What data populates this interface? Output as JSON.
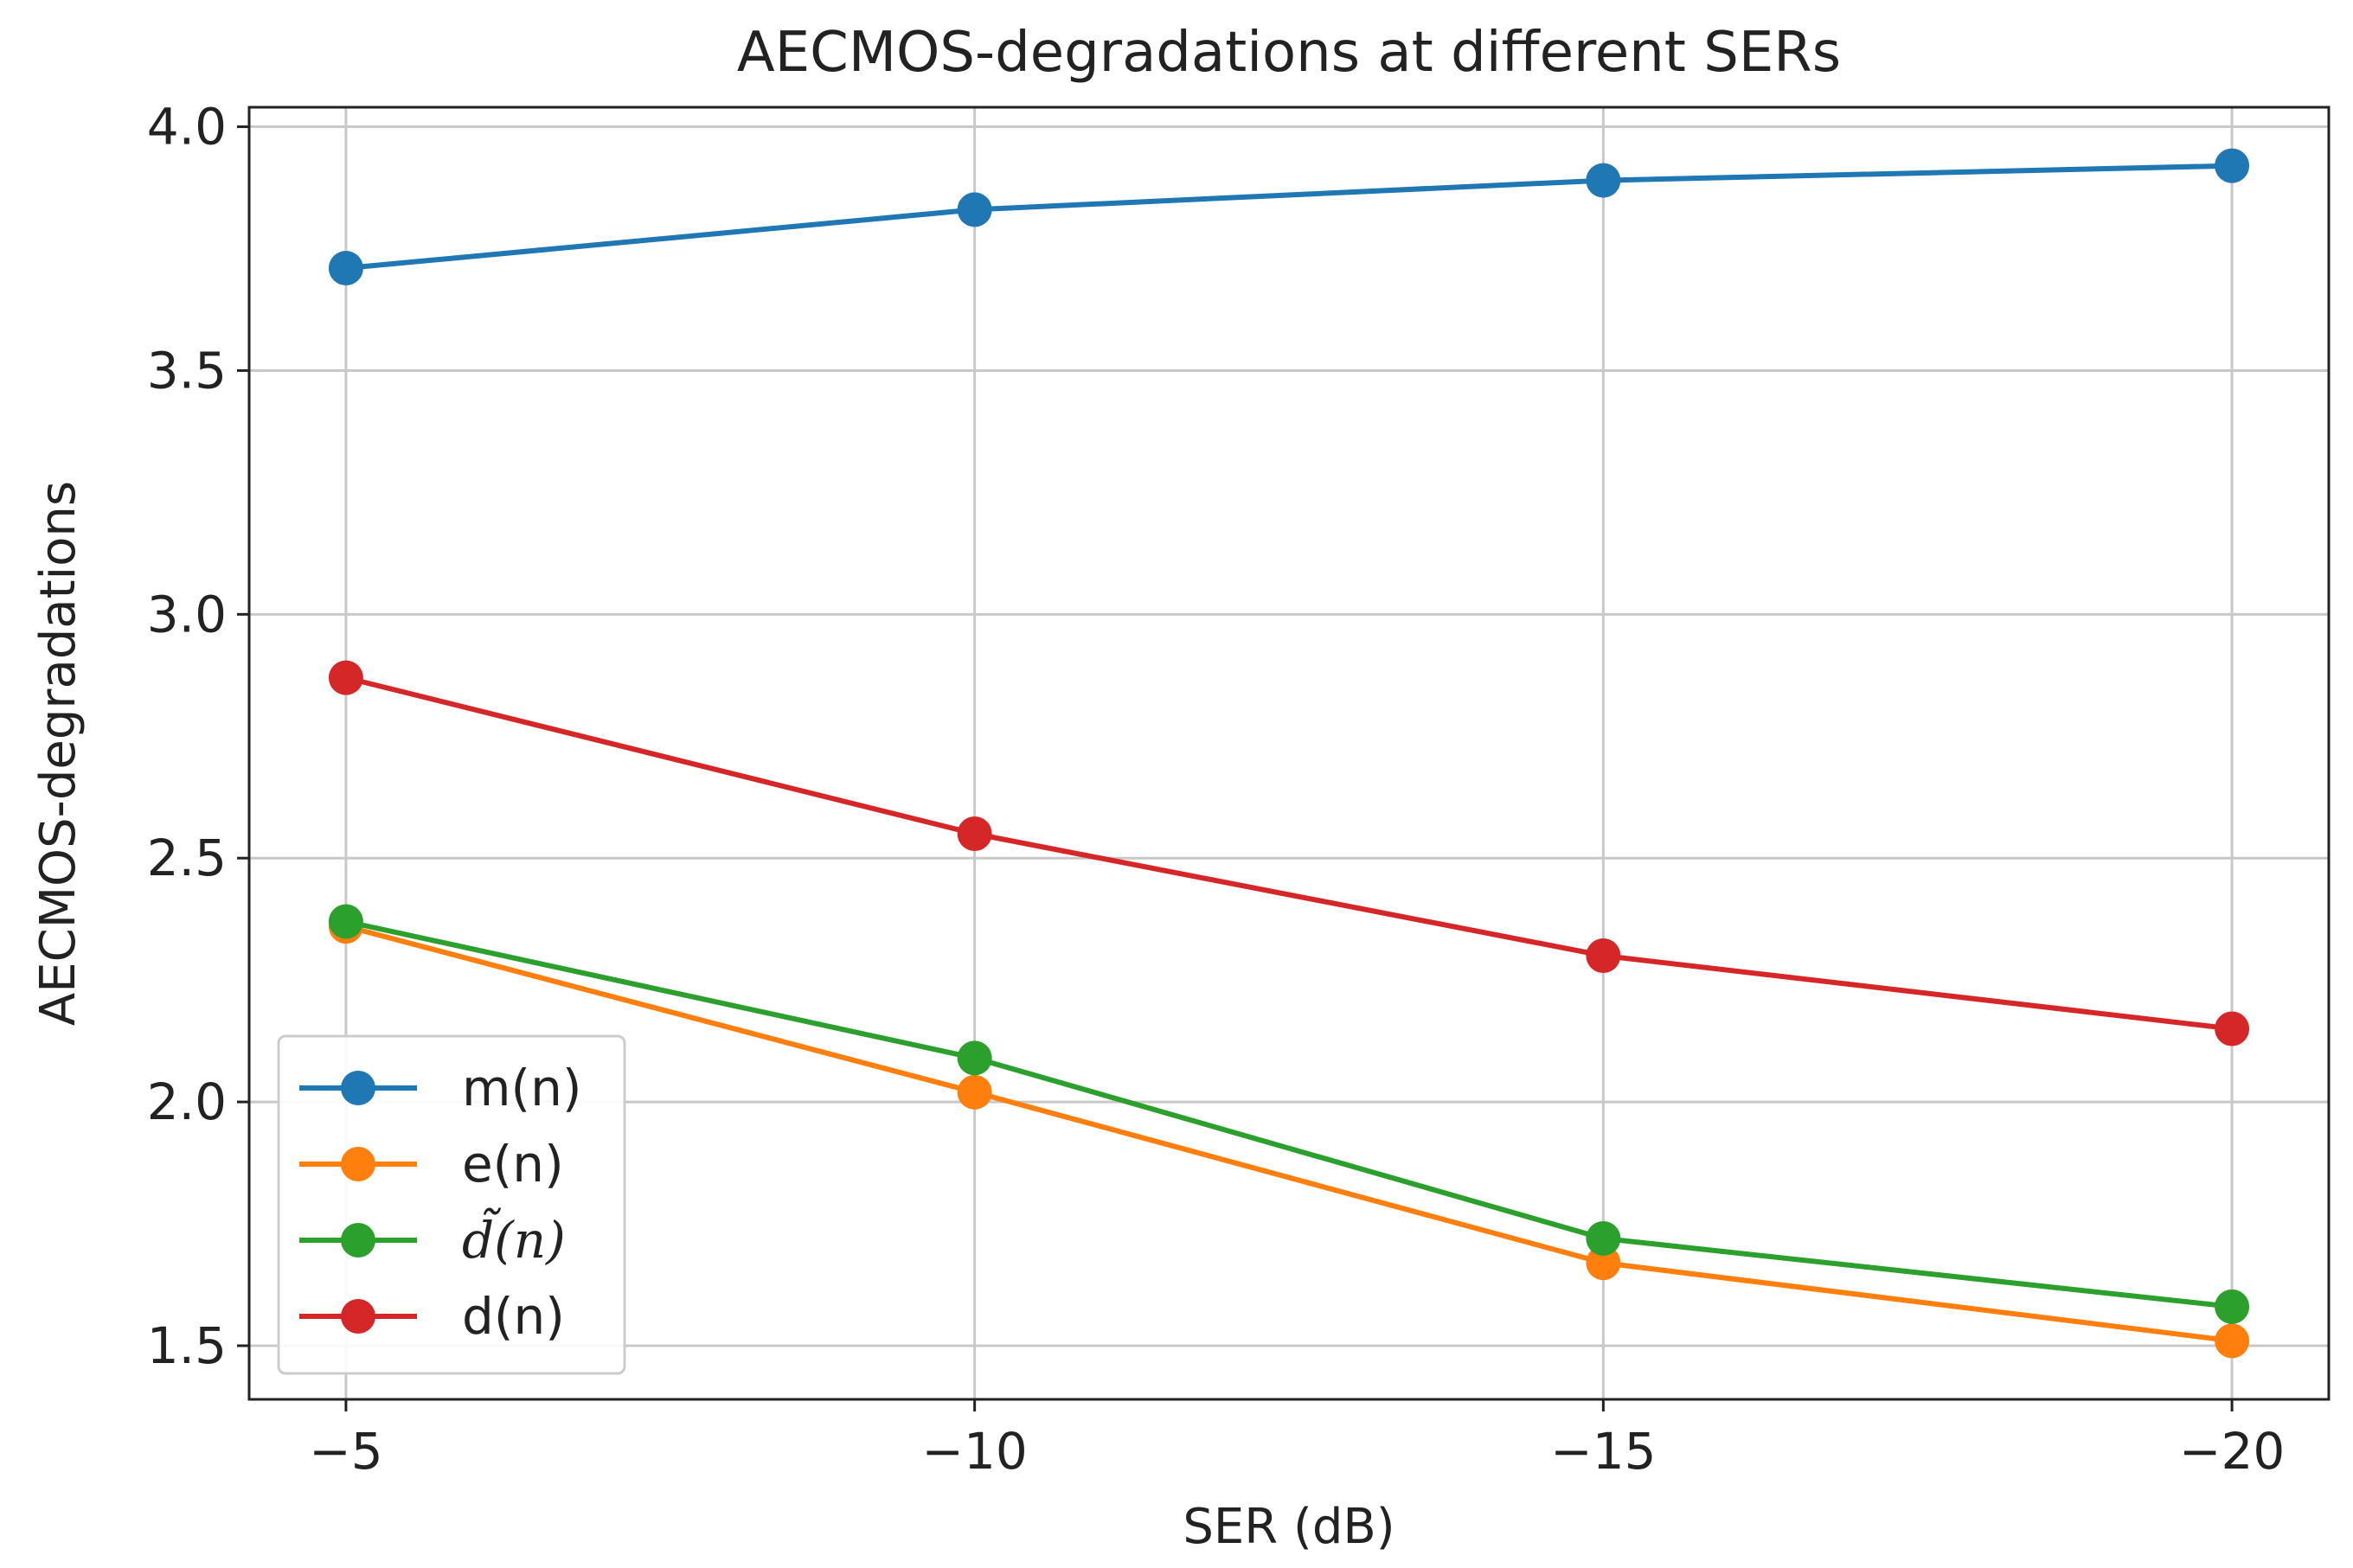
{
  "chart_data": {
    "type": "line",
    "title": "AECMOS-degradations at different SERs",
    "xlabel": "SER (dB)",
    "ylabel": "AECMOS-degradations",
    "x": [
      -5,
      -10,
      -15,
      -20
    ],
    "x_tick_labels": [
      "−5",
      "−10",
      "−15",
      "−20"
    ],
    "xlim": [
      -4.23,
      -20.77
    ],
    "ylim": [
      1.39,
      4.04
    ],
    "y_ticks": [
      1.5,
      2.0,
      2.5,
      3.0,
      3.5,
      4.0
    ],
    "y_tick_labels": [
      "1.5",
      "2.0",
      "2.5",
      "3.0",
      "3.5",
      "4.0"
    ],
    "grid": true,
    "legend_position": "lower-left",
    "series": [
      {
        "name": "m(n)",
        "color": "#1f77b4",
        "values": [
          3.71,
          3.83,
          3.89,
          3.92
        ]
      },
      {
        "name": "e(n)",
        "color": "#ff7f0e",
        "values": [
          2.36,
          2.02,
          1.67,
          1.51
        ]
      },
      {
        "name": "d̃(n)",
        "color": "#2ca02c",
        "math": true,
        "values": [
          2.37,
          2.09,
          1.72,
          1.58
        ]
      },
      {
        "name": "d(n)",
        "color": "#d62728",
        "values": [
          2.87,
          2.55,
          2.3,
          2.15
        ]
      }
    ]
  }
}
